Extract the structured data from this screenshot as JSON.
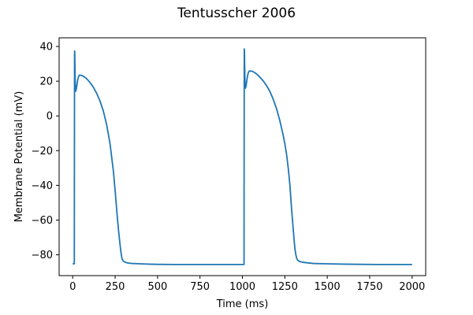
{
  "chart_data": {
    "type": "line",
    "title": "Tentusscher 2006",
    "xlabel": "Time (ms)",
    "ylabel": "Membrane Potential (mV)",
    "xlim": [
      -80,
      2080
    ],
    "ylim": [
      -92,
      45
    ],
    "xticks": [
      0,
      250,
      500,
      750,
      1000,
      1250,
      1500,
      1750,
      2000
    ],
    "yticks": [
      -80,
      -60,
      -40,
      -20,
      0,
      20,
      40
    ],
    "grid": false,
    "series": [
      {
        "color": "#1f77b4",
        "x": [
          0,
          9.5,
          10,
          11,
          12,
          13,
          15,
          18,
          22,
          26,
          30,
          35,
          40,
          50,
          60,
          70,
          80,
          90,
          100,
          120,
          140,
          160,
          180,
          200,
          220,
          240,
          250,
          260,
          270,
          280,
          285,
          290,
          295,
          300,
          305,
          310,
          320,
          330,
          350,
          400,
          450,
          500,
          600,
          700,
          800,
          900,
          1000,
          1009.5,
          1010,
          1011,
          1012,
          1013,
          1015,
          1018,
          1022,
          1026,
          1030,
          1035,
          1040,
          1050,
          1060,
          1070,
          1080,
          1090,
          1100,
          1120,
          1140,
          1160,
          1180,
          1200,
          1220,
          1240,
          1250,
          1260,
          1270,
          1280,
          1290,
          1300,
          1305,
          1310,
          1315,
          1320,
          1325,
          1330,
          1340,
          1350,
          1380,
          1420,
          1500,
          1600,
          1700,
          1800,
          1900,
          2000
        ],
        "y": [
          -85.2,
          -85.2,
          -30,
          37.4,
          36.5,
          30,
          19,
          14.2,
          16,
          18.5,
          21,
          22.8,
          23.5,
          23.4,
          23,
          22.4,
          21.6,
          20.6,
          19.5,
          16.8,
          13.3,
          8.8,
          3,
          -5,
          -16,
          -32,
          -43,
          -55,
          -66,
          -75,
          -79,
          -82,
          -83.2,
          -83.8,
          -84.1,
          -84.3,
          -84.6,
          -84.8,
          -85,
          -85.2,
          -85.4,
          -85.5,
          -85.6,
          -85.6,
          -85.6,
          -85.6,
          -85.6,
          -85.6,
          -30,
          38.6,
          37,
          30,
          20,
          16,
          17.5,
          20.5,
          23,
          25,
          25.8,
          25.9,
          25.6,
          25.1,
          24.4,
          23.6,
          22.6,
          20.5,
          17.8,
          14.5,
          10,
          4.5,
          -2.5,
          -11,
          -16,
          -22,
          -30,
          -40,
          -54,
          -66,
          -72,
          -77,
          -80,
          -82,
          -83,
          -83.5,
          -83.9,
          -84.2,
          -84.6,
          -85,
          -85.2,
          -85.4,
          -85.5,
          -85.6,
          -85.6,
          -85.6
        ]
      }
    ]
  }
}
